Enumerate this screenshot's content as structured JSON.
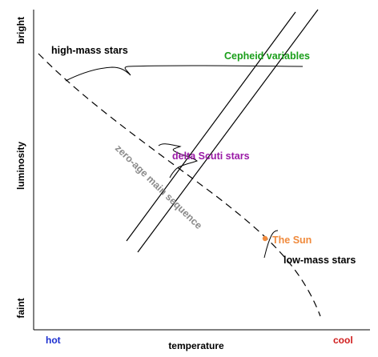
{
  "axes": {
    "y_label": "luminosity",
    "y_top": "bright",
    "y_bottom": "faint",
    "x_label": "temperature",
    "x_left": "hot",
    "x_right": "cool"
  },
  "labels": {
    "high_mass": "high-mass stars",
    "cepheid": "Cepheid variables",
    "delta_scuti": "delta Scuti stars",
    "zams": "zero-age main sequence",
    "sun": "The Sun",
    "low_mass": "low-mass stars"
  },
  "colors": {
    "black": "#000000",
    "green": "#1a9e1a",
    "purple": "#9a1aa6",
    "gray": "#8a8a8a",
    "sun": "#f08a3c",
    "hot": "#1c2fd0",
    "cool": "#d01c1c"
  }
}
